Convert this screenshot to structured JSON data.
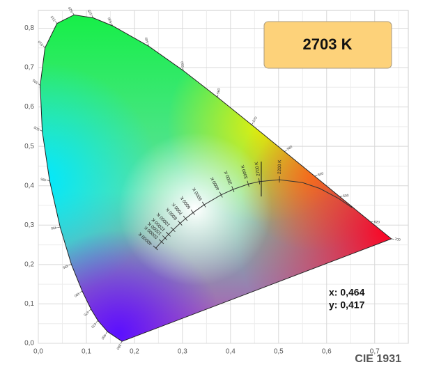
{
  "chart_data": {
    "type": "chromaticity",
    "title": "2703 K",
    "footer": "CIE 1931",
    "xlim": [
      0,
      0.77
    ],
    "ylim": [
      0,
      0.845
    ],
    "xticks": [
      {
        "value": 0,
        "label": "0,0"
      },
      {
        "value": 0.1,
        "label": "0,1"
      },
      {
        "value": 0.2,
        "label": "0,2"
      },
      {
        "value": 0.3,
        "label": "0,3"
      },
      {
        "value": 0.4,
        "label": "0,4"
      },
      {
        "value": 0.5,
        "label": "0,5"
      },
      {
        "value": 0.6,
        "label": "0,6"
      },
      {
        "value": 0.7,
        "label": "0,7"
      }
    ],
    "yticks": [
      {
        "value": 0,
        "label": "0,0"
      },
      {
        "value": 0.1,
        "label": "0,1"
      },
      {
        "value": 0.2,
        "label": "0,2"
      },
      {
        "value": 0.3,
        "label": "0,3"
      },
      {
        "value": 0.4,
        "label": "0,4"
      },
      {
        "value": 0.5,
        "label": "0,5"
      },
      {
        "value": 0.6,
        "label": "0,6"
      },
      {
        "value": 0.7,
        "label": "0,7"
      },
      {
        "value": 0.8,
        "label": "0,8"
      }
    ],
    "grid": true,
    "spectral_locus": {
      "wavelengths": [
        "380",
        "460",
        "470",
        "475",
        "480",
        "485",
        "490",
        "495",
        "500",
        "505",
        "510",
        "515",
        "520",
        "525",
        "530",
        "540",
        "550",
        "560",
        "570",
        "580",
        "590",
        "600",
        "620",
        "700"
      ],
      "x": [
        0.1741,
        0.144,
        0.1241,
        0.1096,
        0.0913,
        0.0687,
        0.0454,
        0.0235,
        0.0082,
        0.0039,
        0.0139,
        0.0389,
        0.0743,
        0.1142,
        0.1547,
        0.2296,
        0.3016,
        0.3731,
        0.4441,
        0.5125,
        0.5752,
        0.627,
        0.6915,
        0.7347
      ],
      "y": [
        0.005,
        0.0297,
        0.0578,
        0.0868,
        0.1327,
        0.2007,
        0.295,
        0.4127,
        0.5384,
        0.6548,
        0.7502,
        0.812,
        0.8338,
        0.8262,
        0.8059,
        0.7543,
        0.6923,
        0.6245,
        0.5547,
        0.4866,
        0.4242,
        0.3725,
        0.3083,
        0.2653
      ]
    },
    "planckian_locus": {
      "x": [
        0.2444,
        0.2565,
        0.2637,
        0.2709,
        0.2807,
        0.2952,
        0.3064,
        0.3221,
        0.3451,
        0.3805,
        0.4053,
        0.4369,
        0.4599,
        0.5018,
        0.5496,
        0.5857,
        0.625,
        0.6528
      ],
      "y": [
        0.2416,
        0.2577,
        0.2673,
        0.2765,
        0.2884,
        0.3048,
        0.3166,
        0.3318,
        0.3516,
        0.3768,
        0.3907,
        0.4041,
        0.4106,
        0.4153,
        0.4081,
        0.3931,
        0.3675,
        0.3444
      ]
    },
    "isotherms": [
      {
        "label": "40000 K",
        "x": 0.2444,
        "y": 0.2416
      },
      {
        "label": "20000 K",
        "x": 0.2565,
        "y": 0.2577
      },
      {
        "label": "15000 K",
        "x": 0.2637,
        "y": 0.2673
      },
      {
        "label": "12000 K",
        "x": 0.2709,
        "y": 0.2765
      },
      {
        "label": "10000 K",
        "x": 0.2807,
        "y": 0.2884
      },
      {
        "label": "8000 K",
        "x": 0.2952,
        "y": 0.3048
      },
      {
        "label": "7000 K",
        "x": 0.3064,
        "y": 0.3166
      },
      {
        "label": "6000 K",
        "x": 0.3221,
        "y": 0.3318
      },
      {
        "label": "5000 K",
        "x": 0.3451,
        "y": 0.3516
      },
      {
        "label": "4000 K",
        "x": 0.3805,
        "y": 0.3768
      },
      {
        "label": "3500 K",
        "x": 0.4053,
        "y": 0.3907
      },
      {
        "label": "3000 K",
        "x": 0.4369,
        "y": 0.4041
      },
      {
        "label": "2700 K",
        "x": 0.4599,
        "y": 0.4106
      },
      {
        "label": "2200 K",
        "x": 0.5018,
        "y": 0.4153
      }
    ],
    "point": {
      "x": 0.464,
      "y": 0.417,
      "x_label": "x: 0,464",
      "y_label": "y: 0,417"
    }
  }
}
